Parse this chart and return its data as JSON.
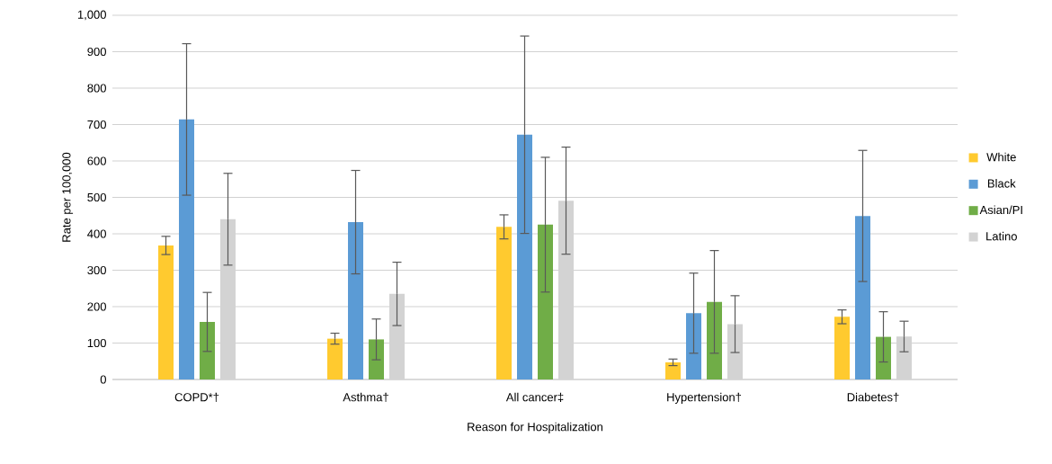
{
  "chart_data": {
    "type": "bar",
    "xlabel": "Reason for Hospitalization",
    "ylabel": "Rate per 100,000",
    "categories": [
      "COPD*†",
      "Asthma†",
      "All cancer‡",
      "Hypertension†",
      "Diabetes†"
    ],
    "series": [
      {
        "name": "White",
        "color": "#ffca2f",
        "values": [
          368,
          112,
          419,
          47,
          172
        ],
        "errors": [
          25,
          15,
          33,
          9,
          19
        ]
      },
      {
        "name": "Black",
        "color": "#5b9bd5",
        "values": [
          714,
          432,
          672,
          182,
          449
        ],
        "errors": [
          208,
          142,
          271,
          110,
          180
        ]
      },
      {
        "name": "Asian/PI",
        "color": "#70ad47",
        "values": [
          158,
          110,
          425,
          213,
          117
        ],
        "errors": [
          81,
          56,
          185,
          141,
          69
        ]
      },
      {
        "name": "Latino",
        "color": "#d3d3d3",
        "values": [
          440,
          235,
          491,
          152,
          118
        ],
        "errors": [
          126,
          87,
          147,
          78,
          42
        ]
      }
    ],
    "ylim": [
      0,
      1000
    ],
    "yticks": [
      0,
      100,
      200,
      300,
      400,
      500,
      600,
      700,
      800,
      900,
      {
        "value": 1000,
        "label": "1,000"
      }
    ],
    "grid": "y",
    "legend": "right"
  }
}
